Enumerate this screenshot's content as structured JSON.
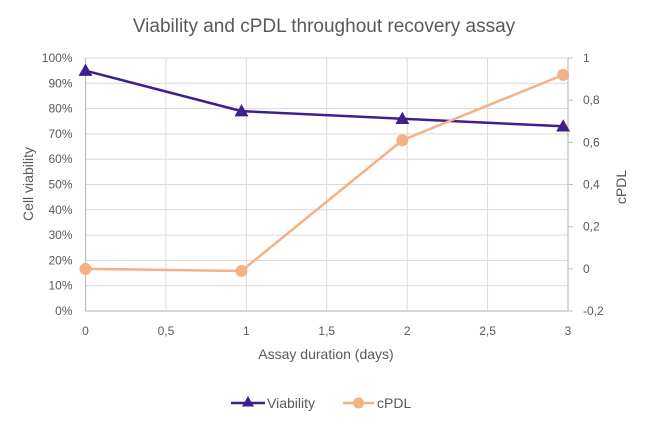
{
  "chart_data": {
    "type": "line",
    "title": "Viability and cPDL throughout recovery assay",
    "xlabel": "Assay duration (days)",
    "ylabel": "Cell viability",
    "y2label": "cPDL",
    "xlim": [
      0,
      3
    ],
    "ylim": [
      0,
      100
    ],
    "y2lim": [
      -0.2,
      1
    ],
    "grid": true,
    "legend_position": "bottom",
    "x_ticks": [
      "0",
      "0,5",
      "1",
      "1,5",
      "2",
      "2,5",
      "3"
    ],
    "x_tick_values": [
      0,
      0.5,
      1,
      1.5,
      2,
      2.5,
      3
    ],
    "y_ticks": [
      "0%",
      "10%",
      "20%",
      "30%",
      "40%",
      "50%",
      "60%",
      "70%",
      "80%",
      "90%",
      "100%"
    ],
    "y_tick_values": [
      0,
      10,
      20,
      30,
      40,
      50,
      60,
      70,
      80,
      90,
      100
    ],
    "y2_ticks": [
      "-0,2",
      "0",
      "0,2",
      "0,4",
      "0,6",
      "0,8",
      "1"
    ],
    "y2_tick_values": [
      -0.2,
      0,
      0.2,
      0.4,
      0.6,
      0.8,
      1
    ],
    "series": [
      {
        "name": "Viability",
        "axis": "left",
        "marker": "triangle",
        "color": "#3f1f8c",
        "x": [
          0,
          0.97,
          1.97,
          2.97
        ],
        "values": [
          95,
          79,
          76,
          73
        ]
      },
      {
        "name": "cPDL",
        "axis": "right",
        "marker": "circle",
        "color": "#f4b183",
        "x": [
          0,
          0.97,
          1.97,
          2.97
        ],
        "values": [
          0,
          -0.01,
          0.61,
          0.92
        ]
      }
    ]
  }
}
